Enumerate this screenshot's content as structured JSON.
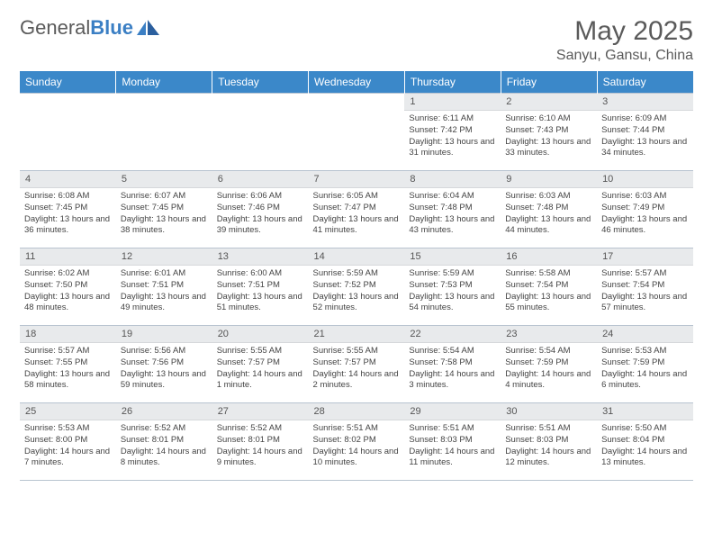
{
  "logo": {
    "word1": "General",
    "word2": "Blue"
  },
  "title": {
    "month": "May 2025",
    "location": "Sanyu, Gansu, China"
  },
  "theme": {
    "header_bg": "#3b88c9",
    "header_fg": "#ffffff",
    "daynum_bg": "#e8eaec",
    "border_color": "#b8c4d0",
    "text_color": "#444444",
    "logo_gray": "#5a5a5a",
    "logo_blue": "#3b7fc4"
  },
  "day_labels": [
    "Sunday",
    "Monday",
    "Tuesday",
    "Wednesday",
    "Thursday",
    "Friday",
    "Saturday"
  ],
  "weeks": [
    [
      null,
      null,
      null,
      null,
      {
        "n": "1",
        "sr": "6:11 AM",
        "ss": "7:42 PM",
        "dl": "13 hours and 31 minutes."
      },
      {
        "n": "2",
        "sr": "6:10 AM",
        "ss": "7:43 PM",
        "dl": "13 hours and 33 minutes."
      },
      {
        "n": "3",
        "sr": "6:09 AM",
        "ss": "7:44 PM",
        "dl": "13 hours and 34 minutes."
      }
    ],
    [
      {
        "n": "4",
        "sr": "6:08 AM",
        "ss": "7:45 PM",
        "dl": "13 hours and 36 minutes."
      },
      {
        "n": "5",
        "sr": "6:07 AM",
        "ss": "7:45 PM",
        "dl": "13 hours and 38 minutes."
      },
      {
        "n": "6",
        "sr": "6:06 AM",
        "ss": "7:46 PM",
        "dl": "13 hours and 39 minutes."
      },
      {
        "n": "7",
        "sr": "6:05 AM",
        "ss": "7:47 PM",
        "dl": "13 hours and 41 minutes."
      },
      {
        "n": "8",
        "sr": "6:04 AM",
        "ss": "7:48 PM",
        "dl": "13 hours and 43 minutes."
      },
      {
        "n": "9",
        "sr": "6:03 AM",
        "ss": "7:48 PM",
        "dl": "13 hours and 44 minutes."
      },
      {
        "n": "10",
        "sr": "6:03 AM",
        "ss": "7:49 PM",
        "dl": "13 hours and 46 minutes."
      }
    ],
    [
      {
        "n": "11",
        "sr": "6:02 AM",
        "ss": "7:50 PM",
        "dl": "13 hours and 48 minutes."
      },
      {
        "n": "12",
        "sr": "6:01 AM",
        "ss": "7:51 PM",
        "dl": "13 hours and 49 minutes."
      },
      {
        "n": "13",
        "sr": "6:00 AM",
        "ss": "7:51 PM",
        "dl": "13 hours and 51 minutes."
      },
      {
        "n": "14",
        "sr": "5:59 AM",
        "ss": "7:52 PM",
        "dl": "13 hours and 52 minutes."
      },
      {
        "n": "15",
        "sr": "5:59 AM",
        "ss": "7:53 PM",
        "dl": "13 hours and 54 minutes."
      },
      {
        "n": "16",
        "sr": "5:58 AM",
        "ss": "7:54 PM",
        "dl": "13 hours and 55 minutes."
      },
      {
        "n": "17",
        "sr": "5:57 AM",
        "ss": "7:54 PM",
        "dl": "13 hours and 57 minutes."
      }
    ],
    [
      {
        "n": "18",
        "sr": "5:57 AM",
        "ss": "7:55 PM",
        "dl": "13 hours and 58 minutes."
      },
      {
        "n": "19",
        "sr": "5:56 AM",
        "ss": "7:56 PM",
        "dl": "13 hours and 59 minutes."
      },
      {
        "n": "20",
        "sr": "5:55 AM",
        "ss": "7:57 PM",
        "dl": "14 hours and 1 minute."
      },
      {
        "n": "21",
        "sr": "5:55 AM",
        "ss": "7:57 PM",
        "dl": "14 hours and 2 minutes."
      },
      {
        "n": "22",
        "sr": "5:54 AM",
        "ss": "7:58 PM",
        "dl": "14 hours and 3 minutes."
      },
      {
        "n": "23",
        "sr": "5:54 AM",
        "ss": "7:59 PM",
        "dl": "14 hours and 4 minutes."
      },
      {
        "n": "24",
        "sr": "5:53 AM",
        "ss": "7:59 PM",
        "dl": "14 hours and 6 minutes."
      }
    ],
    [
      {
        "n": "25",
        "sr": "5:53 AM",
        "ss": "8:00 PM",
        "dl": "14 hours and 7 minutes."
      },
      {
        "n": "26",
        "sr": "5:52 AM",
        "ss": "8:01 PM",
        "dl": "14 hours and 8 minutes."
      },
      {
        "n": "27",
        "sr": "5:52 AM",
        "ss": "8:01 PM",
        "dl": "14 hours and 9 minutes."
      },
      {
        "n": "28",
        "sr": "5:51 AM",
        "ss": "8:02 PM",
        "dl": "14 hours and 10 minutes."
      },
      {
        "n": "29",
        "sr": "5:51 AM",
        "ss": "8:03 PM",
        "dl": "14 hours and 11 minutes."
      },
      {
        "n": "30",
        "sr": "5:51 AM",
        "ss": "8:03 PM",
        "dl": "14 hours and 12 minutes."
      },
      {
        "n": "31",
        "sr": "5:50 AM",
        "ss": "8:04 PM",
        "dl": "14 hours and 13 minutes."
      }
    ]
  ],
  "labels": {
    "sunrise": "Sunrise:",
    "sunset": "Sunset:",
    "daylight": "Daylight:"
  }
}
